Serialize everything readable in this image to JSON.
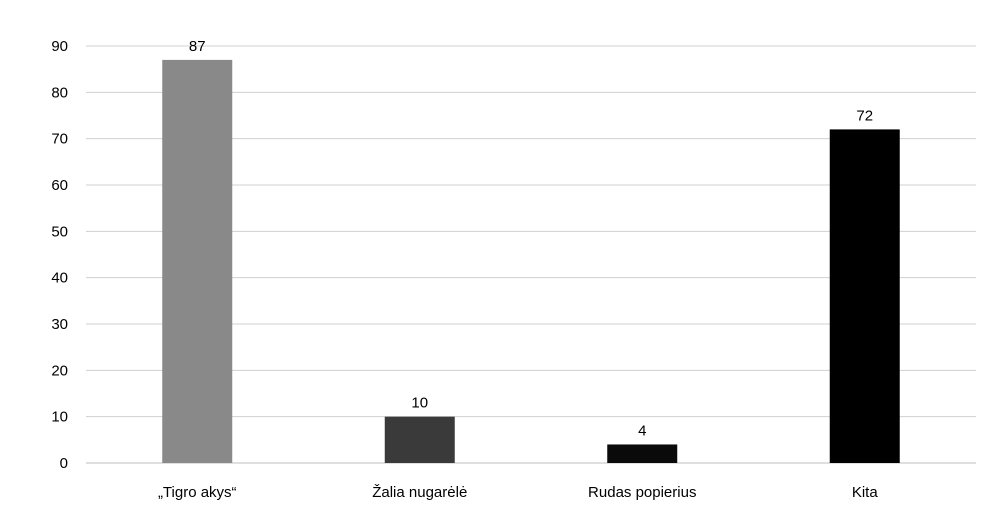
{
  "chart_data": {
    "type": "bar",
    "categories": [
      "„Tigro akys“",
      "Žalia nugarėlė",
      "Rudas popierius",
      "Kita"
    ],
    "values": [
      87,
      10,
      4,
      72
    ],
    "bar_colors": [
      "#898989",
      "#3a3a3a",
      "#0a0a0a",
      "#000000"
    ],
    "ylim": [
      0,
      90
    ],
    "yticks": [
      0,
      10,
      20,
      30,
      40,
      50,
      60,
      70,
      80,
      90
    ],
    "grid": true,
    "data_labels": true,
    "legend": "none"
  }
}
